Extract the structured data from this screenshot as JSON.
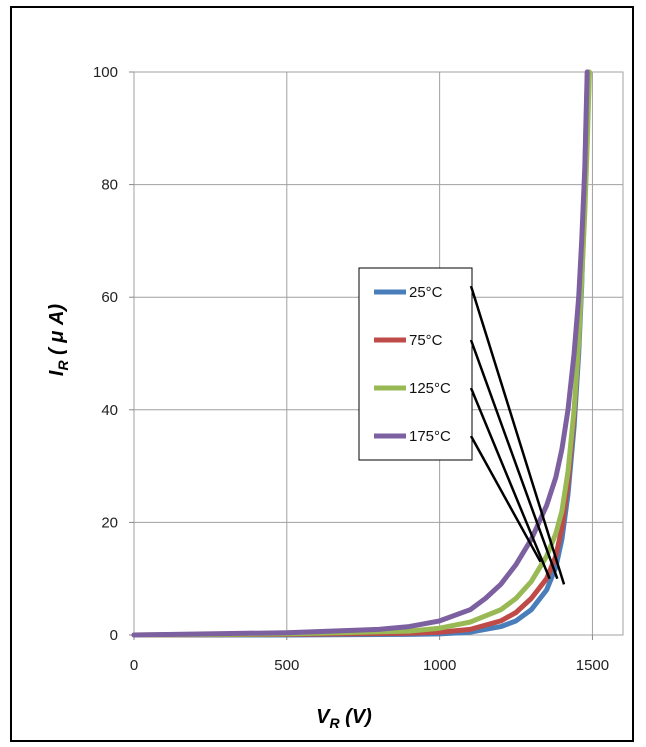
{
  "chart_data": {
    "type": "line",
    "title": "",
    "xlabel": {
      "main": "V",
      "sub": "R",
      "rest": " (V)"
    },
    "ylabel": {
      "main": "I",
      "sub": "R",
      "rest": " ( μ A)"
    },
    "xlim": [
      0,
      1600
    ],
    "ylim": [
      0,
      100
    ],
    "xticks": [
      0,
      500,
      1000,
      1500
    ],
    "yticks": [
      0,
      20,
      40,
      60,
      80,
      100
    ],
    "grid": true,
    "legend_position": "center-right",
    "series": [
      {
        "name": "25°C",
        "color": "#4a7ebb",
        "x": [
          0,
          500,
          900,
          1000,
          1100,
          1200,
          1250,
          1300,
          1350,
          1380,
          1400,
          1420,
          1440,
          1455,
          1465,
          1472,
          1478,
          1484
        ],
        "y": [
          0,
          0,
          0.1,
          0.2,
          0.5,
          1.5,
          2.5,
          4.5,
          8,
          12,
          17,
          25,
          37,
          50,
          62,
          75,
          88,
          100
        ]
      },
      {
        "name": "75°C",
        "color": "#be4b48",
        "x": [
          0,
          500,
          900,
          1000,
          1100,
          1200,
          1250,
          1300,
          1350,
          1380,
          1400,
          1420,
          1440,
          1455,
          1465,
          1472,
          1480,
          1487
        ],
        "y": [
          0,
          0.1,
          0.3,
          0.5,
          1,
          2.5,
          4,
          6.5,
          10,
          14,
          19,
          27,
          39,
          52,
          64,
          76,
          89,
          100
        ]
      },
      {
        "name": "125°C",
        "color": "#98b954",
        "x": [
          0,
          500,
          900,
          1000,
          1100,
          1200,
          1250,
          1300,
          1350,
          1380,
          1400,
          1420,
          1440,
          1455,
          1465,
          1475,
          1483,
          1490
        ],
        "y": [
          0,
          0.2,
          0.7,
          1.2,
          2.3,
          4.5,
          6.5,
          9.5,
          14,
          18,
          22,
          29,
          40,
          52,
          63,
          75,
          87,
          100
        ]
      },
      {
        "name": "175°C",
        "color": "#7d60a0",
        "x": [
          0,
          500,
          800,
          900,
          1000,
          1100,
          1150,
          1200,
          1250,
          1300,
          1350,
          1380,
          1400,
          1420,
          1440,
          1455,
          1465,
          1475,
          1483
        ],
        "y": [
          0,
          0.4,
          1,
          1.5,
          2.5,
          4.5,
          6.5,
          9,
          12.5,
          17,
          23,
          28,
          33,
          40,
          50,
          60,
          70,
          83,
          100
        ]
      }
    ],
    "annotations": [
      {
        "from_series": "25°C",
        "to": [
          1407,
          9
        ]
      },
      {
        "from_series": "75°C",
        "to": [
          1385,
          10
        ]
      },
      {
        "from_series": "125°C",
        "to": [
          1360,
          10
        ]
      },
      {
        "from_series": "175°C",
        "to": [
          1330,
          13
        ]
      }
    ]
  }
}
